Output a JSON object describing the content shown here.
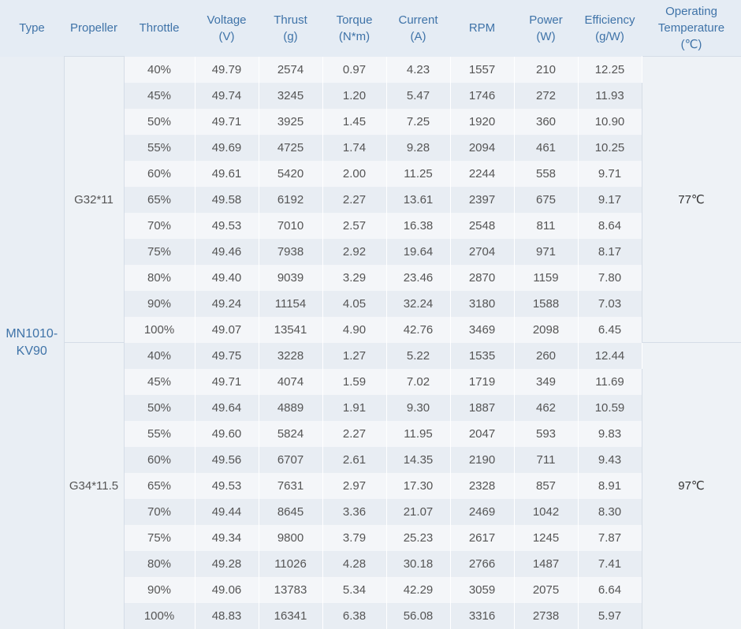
{
  "headers": [
    {
      "line1": "Type",
      "line2": "",
      "line3": ""
    },
    {
      "line1": "Propeller",
      "line2": "",
      "line3": ""
    },
    {
      "line1": "Throttle",
      "line2": "",
      "line3": ""
    },
    {
      "line1": "Voltage",
      "line2": "(V)",
      "line3": ""
    },
    {
      "line1": "Thrust",
      "line2": "(g)",
      "line3": ""
    },
    {
      "line1": "Torque",
      "line2": "(N*m)",
      "line3": ""
    },
    {
      "line1": "Current",
      "line2": "(A)",
      "line3": ""
    },
    {
      "line1": "RPM",
      "line2": "",
      "line3": ""
    },
    {
      "line1": "Power",
      "line2": "(W)",
      "line3": ""
    },
    {
      "line1": "Efficiency",
      "line2": "(g/W)",
      "line3": ""
    },
    {
      "line1": "Operating",
      "line2": "Temperature",
      "line3": "(℃)"
    }
  ],
  "type": {
    "line1": "MN1010-",
    "line2": "KV90"
  },
  "groups": [
    {
      "propeller": "G32*11",
      "temperature": "77℃",
      "rows": [
        [
          "40%",
          "49.79",
          "2574",
          "0.97",
          "4.23",
          "1557",
          "210",
          "12.25"
        ],
        [
          "45%",
          "49.74",
          "3245",
          "1.20",
          "5.47",
          "1746",
          "272",
          "11.93"
        ],
        [
          "50%",
          "49.71",
          "3925",
          "1.45",
          "7.25",
          "1920",
          "360",
          "10.90"
        ],
        [
          "55%",
          "49.69",
          "4725",
          "1.74",
          "9.28",
          "2094",
          "461",
          "10.25"
        ],
        [
          "60%",
          "49.61",
          "5420",
          "2.00",
          "11.25",
          "2244",
          "558",
          "9.71"
        ],
        [
          "65%",
          "49.58",
          "6192",
          "2.27",
          "13.61",
          "2397",
          "675",
          "9.17"
        ],
        [
          "70%",
          "49.53",
          "7010",
          "2.57",
          "16.38",
          "2548",
          "811",
          "8.64"
        ],
        [
          "75%",
          "49.46",
          "7938",
          "2.92",
          "19.64",
          "2704",
          "971",
          "8.17"
        ],
        [
          "80%",
          "49.40",
          "9039",
          "3.29",
          "23.46",
          "2870",
          "1159",
          "7.80"
        ],
        [
          "90%",
          "49.24",
          "11154",
          "4.05",
          "32.24",
          "3180",
          "1588",
          "7.03"
        ],
        [
          "100%",
          "49.07",
          "13541",
          "4.90",
          "42.76",
          "3469",
          "2098",
          "6.45"
        ]
      ]
    },
    {
      "propeller": "G34*11.5",
      "temperature": "97℃",
      "rows": [
        [
          "40%",
          "49.75",
          "3228",
          "1.27",
          "5.22",
          "1535",
          "260",
          "12.44"
        ],
        [
          "45%",
          "49.71",
          "4074",
          "1.59",
          "7.02",
          "1719",
          "349",
          "11.69"
        ],
        [
          "50%",
          "49.64",
          "4889",
          "1.91",
          "9.30",
          "1887",
          "462",
          "10.59"
        ],
        [
          "55%",
          "49.60",
          "5824",
          "2.27",
          "11.95",
          "2047",
          "593",
          "9.83"
        ],
        [
          "60%",
          "49.56",
          "6707",
          "2.61",
          "14.35",
          "2190",
          "711",
          "9.43"
        ],
        [
          "65%",
          "49.53",
          "7631",
          "2.97",
          "17.30",
          "2328",
          "857",
          "8.91"
        ],
        [
          "70%",
          "49.44",
          "8645",
          "3.36",
          "21.07",
          "2469",
          "1042",
          "8.30"
        ],
        [
          "75%",
          "49.34",
          "9800",
          "3.79",
          "25.23",
          "2617",
          "1245",
          "7.87"
        ],
        [
          "80%",
          "49.28",
          "11026",
          "4.28",
          "30.18",
          "2766",
          "1487",
          "7.41"
        ],
        [
          "90%",
          "49.06",
          "13783",
          "5.34",
          "42.29",
          "3059",
          "2075",
          "6.64"
        ],
        [
          "100%",
          "48.83",
          "16341",
          "6.38",
          "56.08",
          "3316",
          "2738",
          "5.97"
        ]
      ]
    }
  ]
}
